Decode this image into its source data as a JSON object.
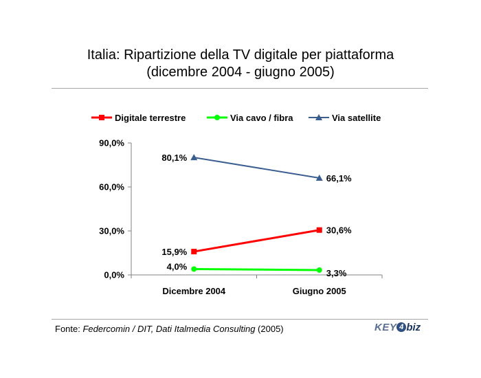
{
  "title_line1": "Italia: Ripartizione della TV digitale per piattaforma",
  "title_line2": "(dicembre 2004 - giugno 2005)",
  "footer": {
    "prefix": "Fonte: ",
    "source": "Federcomin / DIT, Dati Italmedia Consulting",
    "year": " (2005)"
  },
  "logo": {
    "key": "KEY",
    "four": "4",
    "biz": "biz"
  },
  "colors": {
    "terrestre": "#ff0000",
    "cavo": "#00ff00",
    "satellite": "#3b5e91",
    "axis": "#808080"
  },
  "chart_data": {
    "type": "line",
    "title": "Italia: Ripartizione della TV digitale per piattaforma (dicembre 2004 - giugno 2005)",
    "categories": [
      "Dicembre 2004",
      "Giugno 2005"
    ],
    "ylim": [
      0,
      90
    ],
    "yticks": [
      "0,0%",
      "30,0%",
      "60,0%",
      "90,0%"
    ],
    "ytick_values": [
      0,
      30,
      60,
      90
    ],
    "grid": false,
    "legend_position": "top",
    "series": [
      {
        "name": "Digitale terrestre",
        "values": [
          15.9,
          30.6
        ],
        "labels": [
          "15,9%",
          "30,6%"
        ],
        "marker": "square",
        "color": "#ff0000"
      },
      {
        "name": "Via cavo / fibra",
        "values": [
          4.0,
          3.3
        ],
        "labels": [
          "4,0%",
          "3,3%"
        ],
        "marker": "circle",
        "color": "#00ff00"
      },
      {
        "name": "Via satellite",
        "values": [
          80.1,
          66.1
        ],
        "labels": [
          "80,1%",
          "66,1%"
        ],
        "marker": "triangle",
        "color": "#3b5e91"
      }
    ]
  }
}
